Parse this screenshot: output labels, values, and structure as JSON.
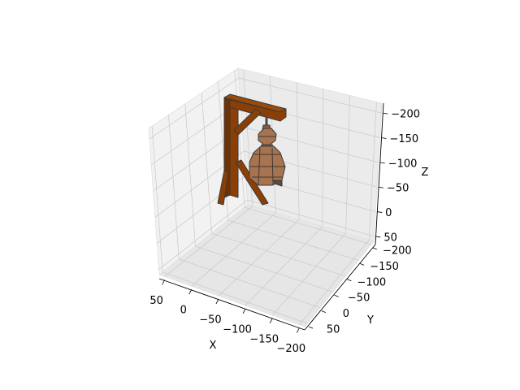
{
  "chart_data": {
    "type": "3d-mesh",
    "xlabel": "X",
    "ylabel": "Y",
    "zlabel": "Z",
    "xlim": [
      60,
      -210
    ],
    "ylim": [
      -210,
      60
    ],
    "zlim": [
      60,
      -220
    ],
    "x_ticks": [
      {
        "value": 50,
        "label": "50"
      },
      {
        "value": 0,
        "label": "0"
      },
      {
        "value": -50,
        "label": "−50"
      },
      {
        "value": -100,
        "label": "−100"
      },
      {
        "value": -150,
        "label": "−150"
      },
      {
        "value": -200,
        "label": "−200"
      }
    ],
    "y_ticks": [
      {
        "value": 50,
        "label": "50"
      },
      {
        "value": 0,
        "label": "0"
      },
      {
        "value": -50,
        "label": "−50"
      },
      {
        "value": -100,
        "label": "−100"
      },
      {
        "value": -150,
        "label": "−150"
      },
      {
        "value": -200,
        "label": "−200"
      }
    ],
    "z_ticks": [
      {
        "value": -200,
        "label": "−200"
      },
      {
        "value": -150,
        "label": "−150"
      },
      {
        "value": -100,
        "label": "−100"
      },
      {
        "value": -50,
        "label": "−50"
      },
      {
        "value": 0,
        "label": "0"
      },
      {
        "value": 50,
        "label": "50"
      }
    ],
    "grid": true,
    "objects": [
      {
        "name": "gallows-frame",
        "color": "#8b3f05"
      },
      {
        "name": "hanging-bell-figure",
        "color": "#a8734f"
      }
    ]
  }
}
